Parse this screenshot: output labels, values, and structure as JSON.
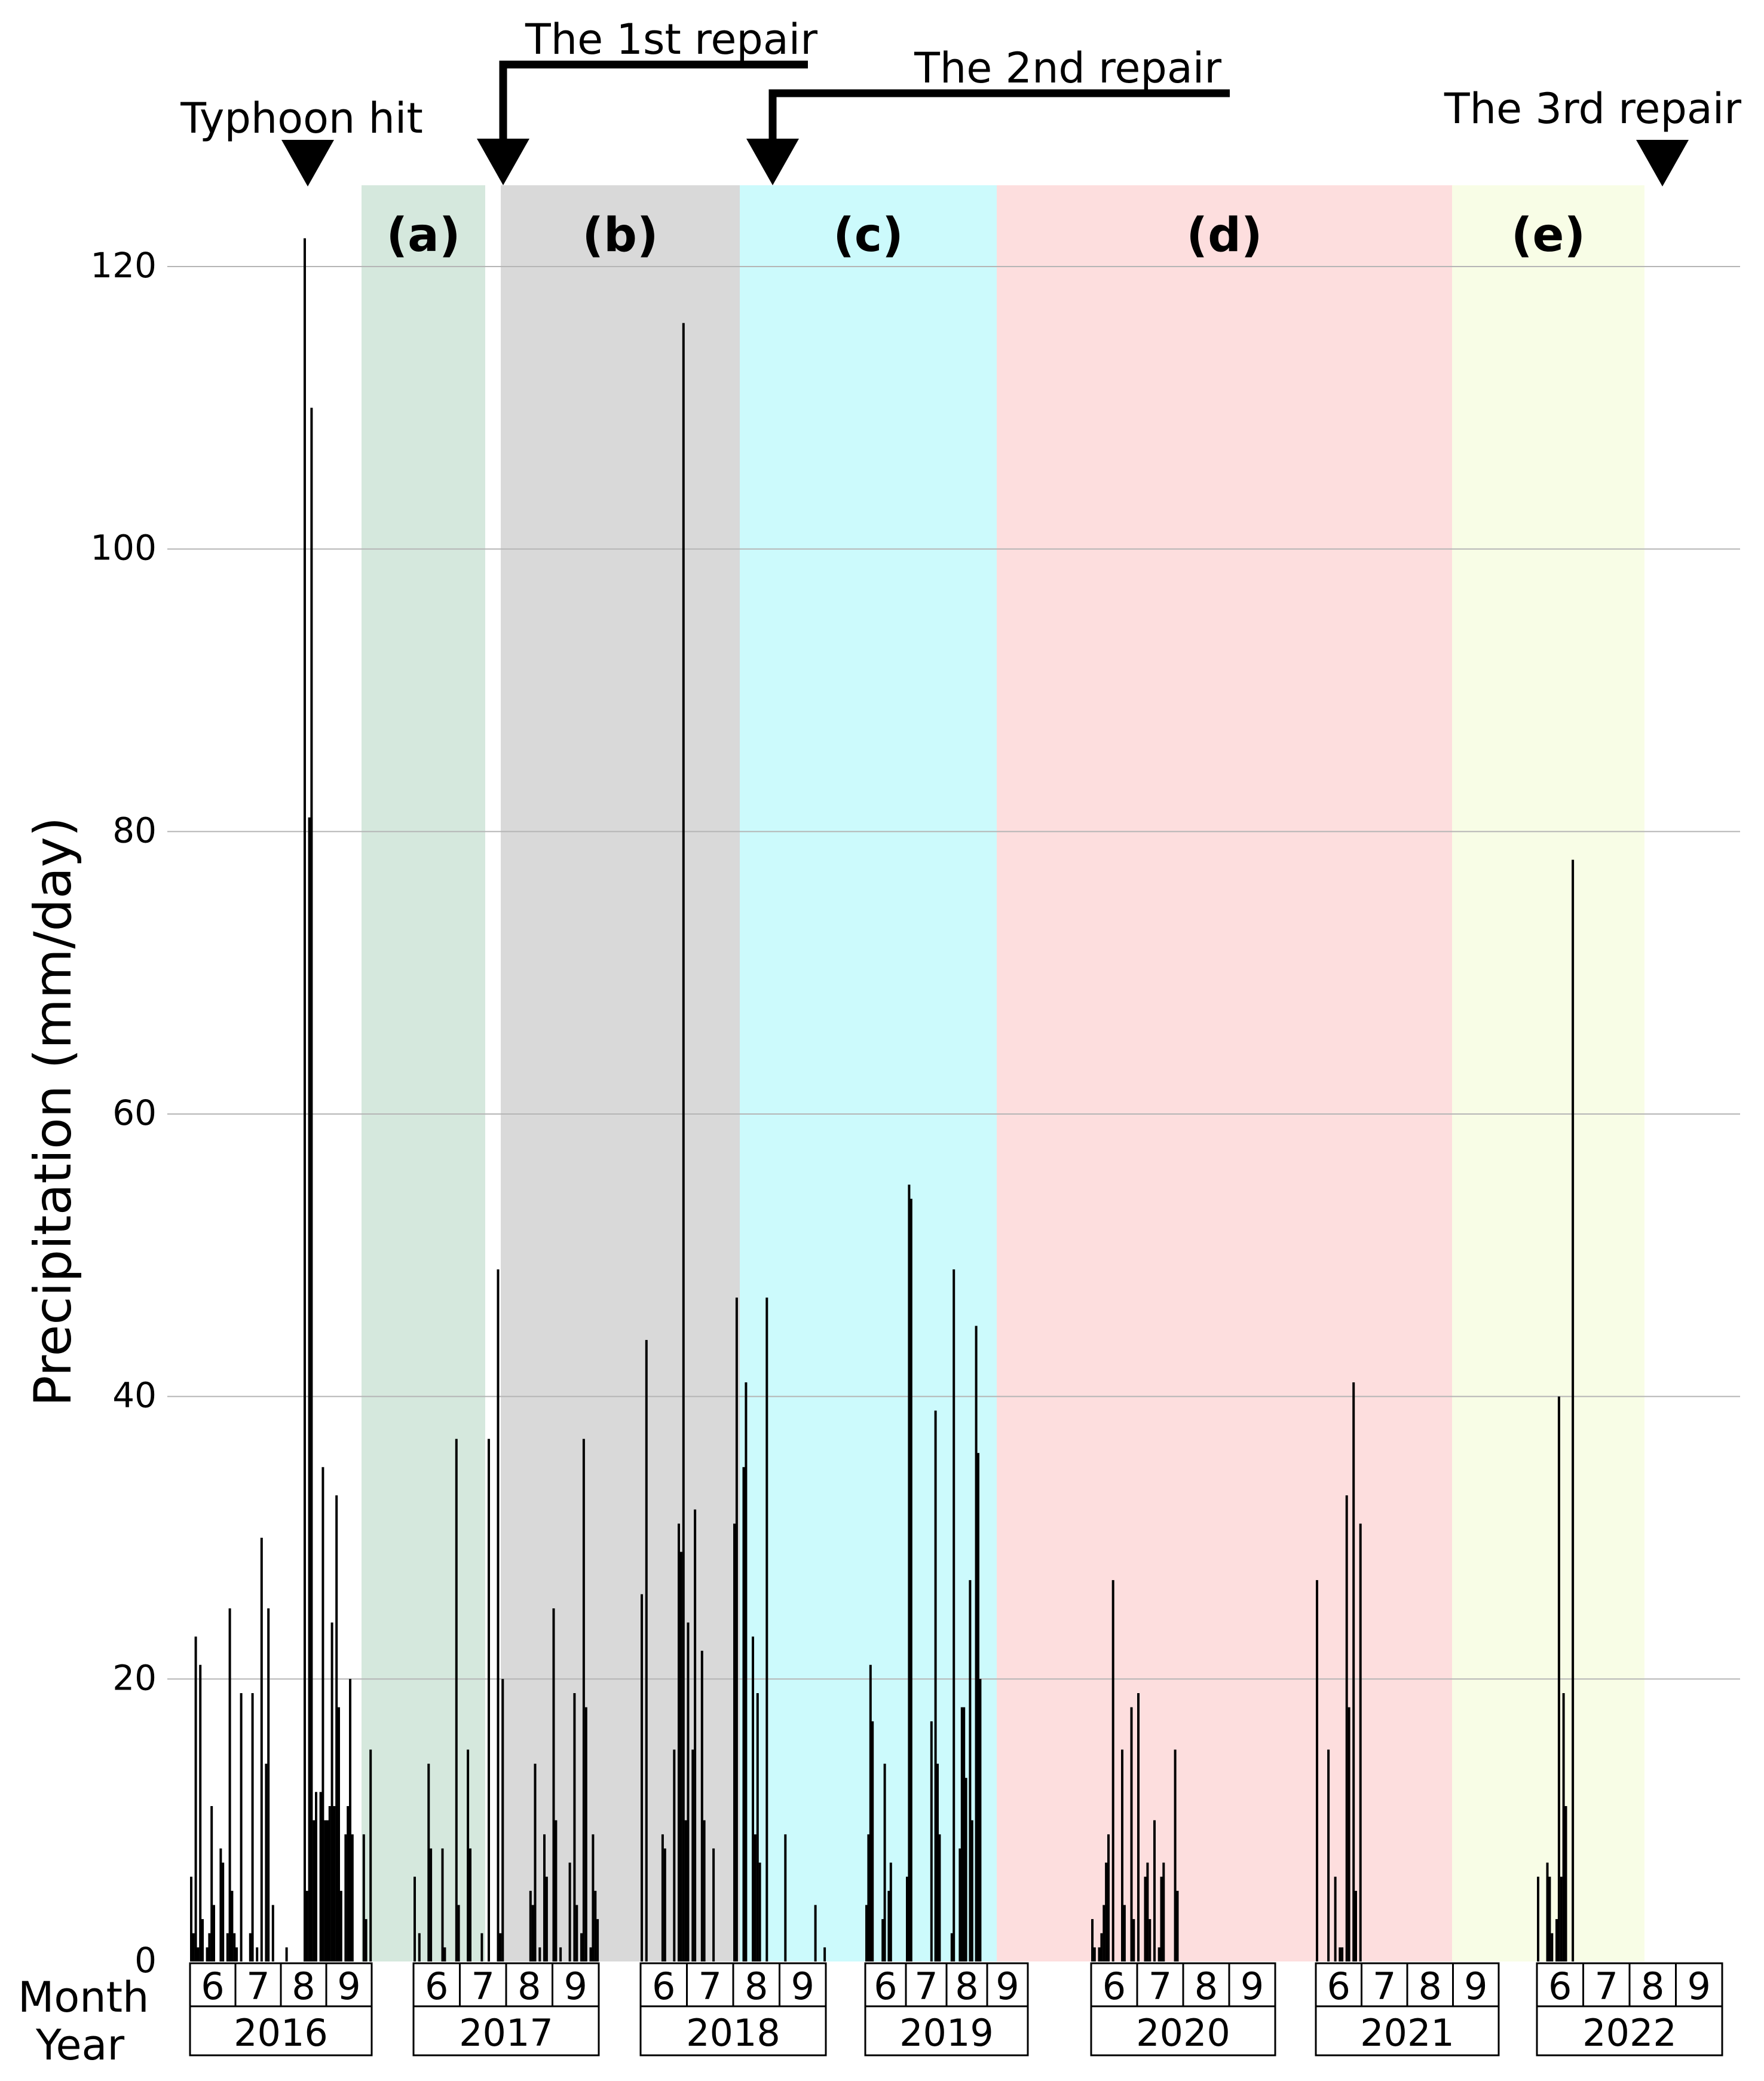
{
  "chart_data": {
    "type": "bar",
    "ylabel": "Precipitation (mm/day)",
    "ylim": [
      0,
      124
    ],
    "yticks": [
      0,
      20,
      40,
      60,
      80,
      100,
      120
    ],
    "axis_row_labels": {
      "month": "Month",
      "year": "Year"
    },
    "months": [
      "6",
      "7",
      "8",
      "9"
    ],
    "years": [
      {
        "year": "2016",
        "values": [
          6,
          2,
          23,
          1,
          21,
          3,
          0,
          1,
          2,
          11,
          4,
          0,
          0,
          8,
          7,
          0,
          2,
          25,
          5,
          2,
          1,
          0,
          19,
          0,
          0,
          0,
          2,
          19,
          0,
          1,
          0,
          30,
          0,
          14,
          25,
          0,
          4,
          0,
          0,
          0,
          0,
          0,
          1,
          0,
          0,
          0,
          0,
          0,
          0,
          0,
          122,
          5,
          81,
          110,
          10,
          12,
          0,
          12,
          35,
          10,
          10,
          11,
          24,
          11,
          33,
          18,
          5,
          0,
          9,
          11,
          20,
          9,
          0,
          0,
          0,
          0,
          9,
          3,
          0,
          15
        ]
      },
      {
        "year": "2017",
        "values": [
          6,
          0,
          2,
          0,
          0,
          0,
          14,
          8,
          0,
          0,
          0,
          0,
          8,
          1,
          0,
          0,
          0,
          0,
          37,
          4,
          0,
          0,
          0,
          15,
          8,
          0,
          0,
          0,
          0,
          2,
          0,
          0,
          37,
          0,
          0,
          0,
          49,
          2,
          20,
          0,
          0,
          0,
          0,
          0,
          0,
          0,
          0,
          0,
          0,
          0,
          5,
          4,
          14,
          0,
          1,
          0,
          9,
          6,
          0,
          0,
          25,
          10,
          0,
          1,
          0,
          0,
          0,
          7,
          0,
          19,
          4,
          0,
          2,
          37,
          18,
          0,
          1,
          9,
          5,
          3
        ]
      },
      {
        "year": "2018",
        "values": [
          26,
          0,
          44,
          0,
          0,
          0,
          0,
          0,
          0,
          9,
          8,
          0,
          0,
          0,
          15,
          0,
          31,
          29,
          116,
          10,
          24,
          0,
          15,
          32,
          0,
          0,
          22,
          10,
          0,
          0,
          0,
          8,
          0,
          0,
          0,
          0,
          0,
          0,
          0,
          0,
          31,
          47,
          0,
          0,
          35,
          41,
          0,
          0,
          23,
          9,
          19,
          7,
          0,
          0,
          47,
          0,
          0,
          0,
          0,
          0,
          0,
          0,
          9,
          0,
          0,
          0,
          0,
          0,
          0,
          0,
          0,
          0,
          0,
          0,
          0,
          4,
          0,
          0,
          0,
          1
        ]
      },
      {
        "year": "2019",
        "values": [
          4,
          9,
          21,
          17,
          0,
          0,
          0,
          0,
          3,
          14,
          0,
          5,
          7,
          0,
          0,
          0,
          0,
          0,
          0,
          0,
          6,
          55,
          54,
          0,
          0,
          0,
          0,
          0,
          0,
          0,
          0,
          0,
          17,
          0,
          39,
          14,
          9,
          0,
          0,
          0,
          0,
          0,
          2,
          49,
          0,
          0,
          8,
          18,
          18,
          13,
          0,
          27,
          10,
          0,
          45,
          36,
          20,
          0,
          0,
          0,
          0,
          0,
          0,
          0,
          0,
          0,
          0,
          0,
          0,
          0,
          0,
          0,
          0,
          0,
          0,
          0,
          0,
          0,
          0,
          0
        ]
      },
      {
        "year": "2020",
        "values": [
          3,
          1,
          0,
          1,
          2,
          4,
          7,
          9,
          0,
          27,
          0,
          0,
          0,
          15,
          4,
          0,
          0,
          18,
          3,
          0,
          19,
          0,
          0,
          6,
          7,
          3,
          0,
          10,
          0,
          1,
          6,
          7,
          0,
          0,
          0,
          0,
          15,
          5,
          0,
          0,
          0,
          0,
          0,
          0,
          0,
          0,
          0,
          0,
          0,
          0,
          0,
          0,
          0,
          0,
          0,
          0,
          0,
          0,
          0,
          0,
          0,
          0,
          0,
          0,
          0,
          0,
          0,
          0,
          0,
          0,
          0,
          0,
          0,
          0,
          0,
          0,
          0,
          0,
          0,
          0
        ]
      },
      {
        "year": "2021",
        "values": [
          27,
          0,
          0,
          0,
          0,
          15,
          0,
          0,
          6,
          0,
          1,
          1,
          0,
          33,
          18,
          0,
          41,
          5,
          0,
          31,
          0,
          0,
          0,
          0,
          0,
          0,
          0,
          0,
          0,
          0,
          0,
          0,
          0,
          0,
          0,
          0,
          0,
          0,
          0,
          0,
          0,
          0,
          0,
          0,
          0,
          0,
          0,
          0,
          0,
          0,
          0,
          0,
          0,
          0,
          0,
          0,
          0,
          0,
          0,
          0,
          0,
          0,
          0,
          0,
          0,
          0,
          0,
          0,
          0,
          0,
          0,
          0,
          0,
          0,
          0,
          0,
          0,
          0,
          0,
          0
        ]
      },
      {
        "year": "2022",
        "values": [
          6,
          0,
          0,
          0,
          7,
          6,
          2,
          0,
          3,
          40,
          6,
          19,
          11,
          0,
          0,
          78,
          0,
          0,
          0,
          0,
          0,
          0,
          0,
          0,
          0,
          0,
          0,
          0,
          0,
          0,
          0,
          0,
          0,
          0,
          0,
          0,
          0,
          0,
          0,
          0,
          0,
          0,
          0,
          0,
          0,
          0,
          0,
          0,
          0,
          0,
          0,
          0,
          0,
          0,
          0,
          0,
          0,
          0,
          0,
          0,
          0,
          0,
          0,
          0,
          0,
          0,
          0,
          0,
          0,
          0,
          0,
          0,
          0,
          0,
          0,
          0,
          0,
          0,
          0,
          0
        ]
      }
    ],
    "periods": [
      {
        "label": "(a)",
        "color": "#d5e8dd"
      },
      {
        "label": "(b)",
        "color": "#d9d9d9"
      },
      {
        "label": "(c)",
        "color": "#ccfafc"
      },
      {
        "label": "(d)",
        "color": "#fddede"
      },
      {
        "label": "(e)",
        "color": "#f8fde6"
      }
    ],
    "annotations": [
      {
        "id": "typhoon",
        "text": "Typhoon hit"
      },
      {
        "id": "repair1",
        "text": "The 1st repair"
      },
      {
        "id": "repair2",
        "text": "The 2nd repair"
      },
      {
        "id": "repair3",
        "text": "The 3rd repair"
      }
    ]
  }
}
